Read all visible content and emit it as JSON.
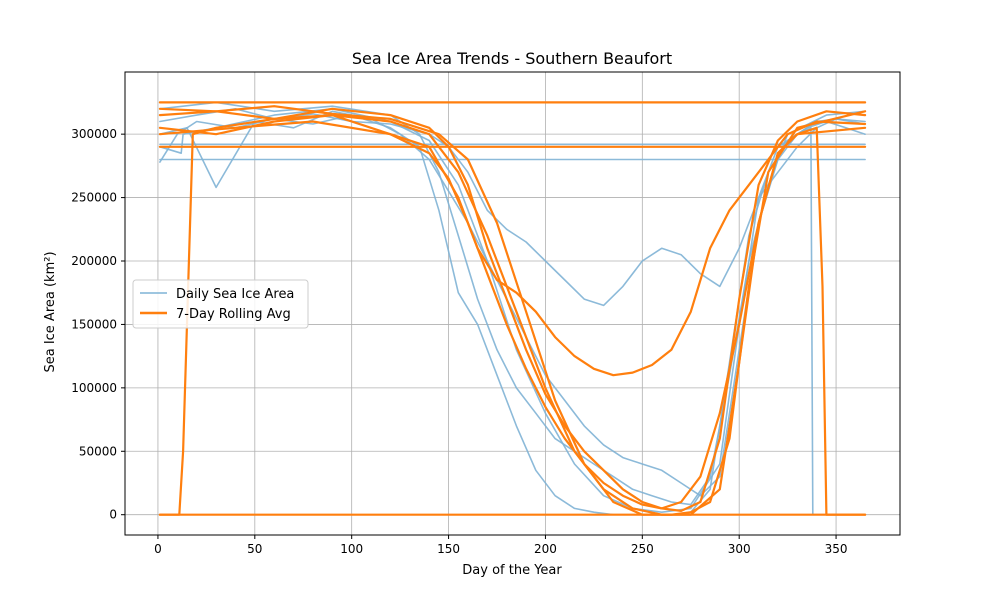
{
  "chart_data": {
    "type": "line",
    "title": "Sea Ice Area Trends - Southern Beaufort",
    "xlabel": "Day of the Year",
    "ylabel": "Sea Ice Area (km²)",
    "xlim": [
      -17,
      383
    ],
    "ylim": [
      -16000,
      349000
    ],
    "xticks": [
      0,
      50,
      100,
      150,
      200,
      250,
      300,
      350
    ],
    "yticks": [
      0,
      50000,
      100000,
      150000,
      200000,
      250000,
      300000
    ],
    "grid": true,
    "legend_position": "center-left",
    "series": [
      {
        "name": "Daily Sea Ice Area",
        "color": "#7fb3d5",
        "style": "thin",
        "lines": [
          {
            "x": [
              1,
              10,
              20,
              40,
              60,
              80,
              100,
              120,
              135,
              145,
              155,
              165,
              175,
              185,
              195,
              205,
              215,
              225,
              235,
              245,
              255,
              265,
              275,
              285,
              295,
              305,
              315,
              325,
              335,
              345,
              355,
              365
            ],
            "y": [
              278000,
              300000,
              310000,
              305000,
              312000,
              308000,
              315000,
              305000,
              290000,
              240000,
              175000,
              150000,
              110000,
              70000,
              35000,
              15000,
              5000,
              2000,
              0,
              0,
              0,
              0,
              2000,
              20000,
              120000,
              220000,
              270000,
              295000,
              305000,
              310000,
              305000,
              300000
            ]
          },
          {
            "x": [
              1,
              15,
              30,
              50,
              70,
              90,
              110,
              125,
              140,
              150,
              160,
              170,
              180,
              190,
              200,
              210,
              220,
              230,
              240,
              250,
              260,
              270,
              280,
              290,
              300,
              310,
              320,
              330,
              340,
              350,
              365
            ],
            "y": [
              300000,
              305000,
              258000,
              310000,
              305000,
              318000,
              312000,
              300000,
              280000,
              255000,
              230000,
              200000,
              170000,
              140000,
              110000,
              90000,
              70000,
              55000,
              45000,
              40000,
              35000,
              25000,
              15000,
              30000,
              130000,
              230000,
              280000,
              300000,
              310000,
              312000,
              308000
            ]
          },
          {
            "x": [
              1,
              20,
              40,
              60,
              80,
              100,
              120,
              140,
              150,
              160,
              170,
              180,
              190,
              200,
              210,
              220,
              230,
              240,
              250,
              260,
              270,
              280,
              290,
              300,
              310,
              320,
              330,
              340,
              350,
              365
            ],
            "y": [
              310000,
              315000,
              320000,
              312000,
              316000,
              310000,
              308000,
              300000,
              290000,
              270000,
              240000,
              225000,
              215000,
              200000,
              185000,
              170000,
              165000,
              180000,
              200000,
              210000,
              205000,
              190000,
              180000,
              210000,
              250000,
              270000,
              290000,
              305000,
              312000,
              310000
            ]
          },
          {
            "x": [
              1,
              12,
              13,
              30,
              60,
              90,
              120,
              140,
              155,
              170,
              185,
              200,
              215,
              230,
              245,
              260,
              275,
              290,
              300,
              310,
              320,
              330,
              337,
              338,
              365
            ],
            "y": [
              290000,
              285000,
              300000,
              305000,
              315000,
              320000,
              310000,
              295000,
              260000,
              200000,
              130000,
              80000,
              40000,
              15000,
              5000,
              2000,
              5000,
              40000,
              150000,
              250000,
              290000,
              300000,
              305000,
              0,
              0
            ]
          },
          {
            "x": [
              1,
              30,
              60,
              90,
              120,
              135,
              145,
              155,
              165,
              175,
              185,
              195,
              205,
              215,
              225,
              235,
              245,
              255,
              265,
              275,
              285,
              295,
              305,
              315,
              325,
              345,
              365
            ],
            "y": [
              320000,
              325000,
              318000,
              322000,
              315000,
              300000,
              270000,
              220000,
              170000,
              130000,
              100000,
              80000,
              60000,
              50000,
              40000,
              30000,
              20000,
              15000,
              10000,
              8000,
              30000,
              110000,
              200000,
              260000,
              300000,
              315000,
              318000
            ]
          },
          {
            "x": [
              1,
              365
            ],
            "y": [
              280000,
              280000
            ]
          },
          {
            "x": [
              1,
              365
            ],
            "y": [
              292000,
              292000
            ]
          }
        ]
      },
      {
        "name": "7-Day Rolling Avg",
        "color": "#ff7f0e",
        "style": "thick",
        "lines": [
          {
            "x": [
              1,
              11,
              13,
              18,
              30,
              60,
              90,
              120,
              140,
              155,
              170,
              185,
              200,
              215,
              230,
              245,
              260,
              275,
              290,
              300,
              310,
              320,
              330,
              340,
              343,
              345,
              365
            ],
            "y": [
              0,
              0,
              50000,
              300000,
              305000,
              312000,
              315000,
              310000,
              300000,
              270000,
              220000,
              160000,
              100000,
              50000,
              20000,
              5000,
              0,
              0,
              20000,
              120000,
              230000,
              285000,
              300000,
              305000,
              180000,
              0,
              0
            ]
          },
          {
            "x": [
              1,
              365
            ],
            "y": [
              0,
              0
            ]
          },
          {
            "x": [
              1,
              30,
              60,
              90,
              120,
              140,
              150,
              160,
              170,
              180,
              190,
              200,
              210,
              220,
              230,
              240,
              250,
              260,
              270,
              280,
              290,
              300,
              310,
              320,
              330,
              345,
              365
            ],
            "y": [
              315000,
              318000,
              312000,
              320000,
              315000,
              305000,
              290000,
              260000,
              210000,
              170000,
              130000,
              95000,
              70000,
              50000,
              35000,
              20000,
              10000,
              5000,
              3000,
              10000,
              60000,
              170000,
              260000,
              295000,
              310000,
              318000,
              315000
            ]
          },
          {
            "x": [
              1,
              30,
              60,
              90,
              120,
              140,
              155,
              165,
              175,
              185,
              195,
              205,
              215,
              225,
              235,
              245,
              255,
              265,
              275,
              285,
              295,
              305,
              315,
              325,
              340,
              365
            ],
            "y": [
              305000,
              300000,
              310000,
              315000,
              300000,
              290000,
              250000,
              210000,
              185000,
              175000,
              160000,
              140000,
              125000,
              115000,
              110000,
              112000,
              118000,
              130000,
              160000,
              210000,
              240000,
              260000,
              280000,
              300000,
              310000,
              308000
            ]
          },
          {
            "x": [
              1,
              30,
              60,
              90,
              120,
              145,
              160,
              175,
              190,
              205,
              220,
              235,
              250,
              265,
              275,
              285,
              295,
              305,
              315,
              330,
              365
            ],
            "y": [
              320000,
              318000,
              322000,
              316000,
              312000,
              300000,
              280000,
              230000,
              160000,
              90000,
              40000,
              10000,
              0,
              0,
              2000,
              10000,
              60000,
              180000,
              270000,
              305000,
              318000
            ]
          },
          {
            "x": [
              1,
              40,
              80,
              120,
              140,
              150,
              160,
              170,
              180,
              190,
              200,
              210,
              220,
              230,
              240,
              250,
              260,
              270,
              280,
              290,
              300,
              310,
              320,
              330,
              365
            ],
            "y": [
              300000,
              305000,
              310000,
              300000,
              285000,
              265000,
              230000,
              190000,
              150000,
              115000,
              85000,
              60000,
              40000,
              25000,
              15000,
              8000,
              5000,
              10000,
              30000,
              80000,
              150000,
              230000,
              285000,
              300000,
              305000
            ]
          },
          {
            "x": [
              1,
              365
            ],
            "y": [
              290000,
              290000
            ]
          },
          {
            "x": [
              1,
              365
            ],
            "y": [
              325000,
              325000
            ]
          }
        ]
      }
    ]
  }
}
